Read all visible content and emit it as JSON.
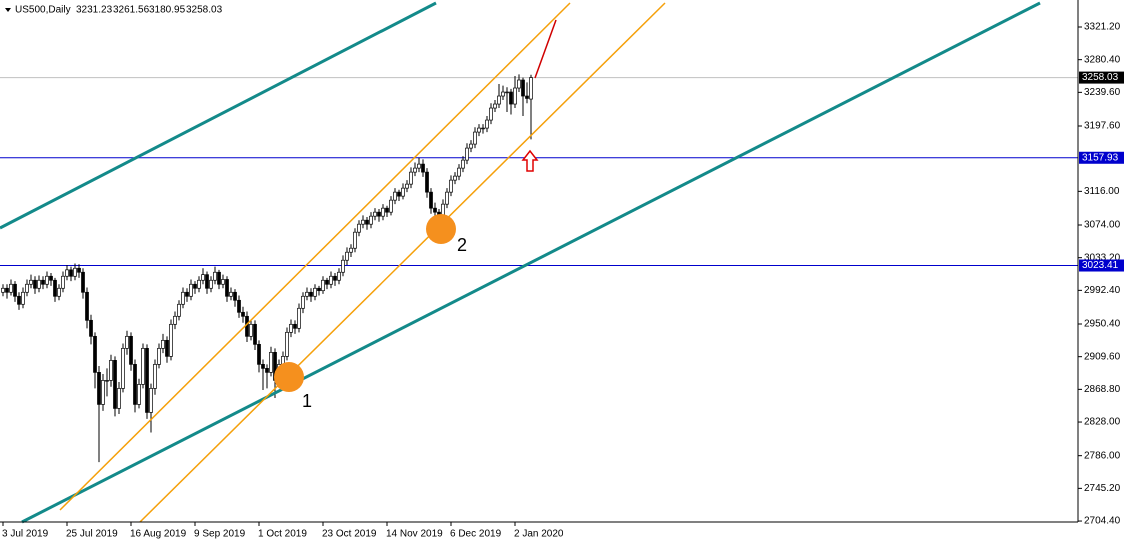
{
  "chart_data": {
    "type": "candlestick",
    "title": "US500,Daily",
    "categories": [
      "3 Jul 2019",
      null,
      null,
      null,
      null,
      null,
      null,
      null,
      null,
      null,
      null,
      null,
      null,
      null,
      null,
      null,
      "25 Jul 2019",
      null,
      null,
      null,
      null,
      null,
      null,
      null,
      null,
      null,
      null,
      null,
      null,
      null,
      null,
      null,
      "16 Aug 2019",
      null,
      null,
      null,
      null,
      null,
      null,
      null,
      null,
      null,
      null,
      null,
      null,
      null,
      null,
      null,
      "9 Sep 2019",
      null,
      null,
      null,
      null,
      null,
      null,
      null,
      null,
      null,
      null,
      null,
      null,
      null,
      null,
      null,
      "1 Oct 2019",
      null,
      null,
      null,
      null,
      null,
      null,
      null,
      null,
      null,
      null,
      null,
      null,
      null,
      null,
      null,
      "23 Oct 2019",
      null,
      null,
      null,
      null,
      null,
      null,
      null,
      null,
      null,
      null,
      null,
      null,
      null,
      null,
      null,
      "14 Nov 2019",
      null,
      null,
      null,
      null,
      null,
      null,
      null,
      null,
      null,
      null,
      null,
      null,
      null,
      null,
      null,
      "6 Dec 2019",
      null,
      null,
      null,
      null,
      null,
      null,
      null,
      null,
      null,
      null,
      null,
      null,
      null,
      null,
      null,
      "2 Jan 2020",
      null,
      null,
      null,
      null
    ],
    "ohlc": [
      [
        2990,
        3000,
        2985,
        2995
      ],
      [
        2995,
        3000,
        2982,
        2990
      ],
      [
        2990,
        3006,
        2986,
        3000
      ],
      [
        3000,
        3004,
        2978,
        2985
      ],
      [
        2985,
        2990,
        2968,
        2975
      ],
      [
        2975,
        2996,
        2970,
        2990
      ],
      [
        2990,
        3006,
        2985,
        3000
      ],
      [
        3000,
        3012,
        2995,
        3005
      ],
      [
        3005,
        3010,
        2988,
        2995
      ],
      [
        2995,
        3011,
        2990,
        3005
      ],
      [
        3005,
        3010,
        2994,
        3000
      ],
      [
        3000,
        3016,
        2995,
        3010
      ],
      [
        3010,
        3014,
        2998,
        3005
      ],
      [
        3005,
        3008,
        2978,
        2985
      ],
      [
        2985,
        3000,
        2980,
        2995
      ],
      [
        2995,
        3016,
        2990,
        3010
      ],
      [
        3010,
        3024,
        3005,
        3018
      ],
      [
        3018,
        3022,
        3004,
        3010
      ],
      [
        3010,
        3026,
        3005,
        3020
      ],
      [
        3020,
        3025,
        3008,
        3015
      ],
      [
        3015,
        3020,
        2982,
        2990
      ],
      [
        2990,
        2996,
        2945,
        2955
      ],
      [
        2955,
        2962,
        2925,
        2935
      ],
      [
        2935,
        2940,
        2870,
        2890
      ],
      [
        2890,
        2898,
        2778,
        2850
      ],
      [
        2850,
        2888,
        2842,
        2880
      ],
      [
        2880,
        2895,
        2860,
        2880
      ],
      [
        2880,
        2912,
        2872,
        2905
      ],
      [
        2905,
        2910,
        2835,
        2845
      ],
      [
        2845,
        2878,
        2838,
        2870
      ],
      [
        2870,
        2926,
        2865,
        2920
      ],
      [
        2920,
        2942,
        2912,
        2935
      ],
      [
        2935,
        2940,
        2892,
        2900
      ],
      [
        2900,
        2906,
        2840,
        2850
      ],
      [
        2850,
        2882,
        2845,
        2875
      ],
      [
        2875,
        2926,
        2870,
        2920
      ],
      [
        2920,
        2925,
        2832,
        2840
      ],
      [
        2840,
        2876,
        2815,
        2870
      ],
      [
        2870,
        2906,
        2862,
        2900
      ],
      [
        2900,
        2926,
        2895,
        2920
      ],
      [
        2920,
        2938,
        2914,
        2930
      ],
      [
        2930,
        2935,
        2902,
        2910
      ],
      [
        2910,
        2956,
        2905,
        2950
      ],
      [
        2950,
        2966,
        2944,
        2960
      ],
      [
        2960,
        2980,
        2955,
        2975
      ],
      [
        2975,
        2996,
        2970,
        2990
      ],
      [
        2990,
        2995,
        2978,
        2985
      ],
      [
        2985,
        3006,
        2980,
        3000
      ],
      [
        3000,
        3004,
        2988,
        2995
      ],
      [
        2995,
        3010,
        2990,
        3005
      ],
      [
        3005,
        3020,
        3000,
        3012
      ],
      [
        3012,
        3016,
        2988,
        2995
      ],
      [
        2995,
        3010,
        2990,
        3005
      ],
      [
        3005,
        3022,
        3000,
        3015
      ],
      [
        3015,
        3018,
        2994,
        3000
      ],
      [
        3000,
        3012,
        2995,
        3006
      ],
      [
        3006,
        3010,
        2978,
        2985
      ],
      [
        2985,
        2996,
        2980,
        2990
      ],
      [
        2990,
        2994,
        2972,
        2980
      ],
      [
        2980,
        2986,
        2958,
        2965
      ],
      [
        2965,
        2972,
        2952,
        2960
      ],
      [
        2960,
        2966,
        2928,
        2935
      ],
      [
        2935,
        2956,
        2930,
        2950
      ],
      [
        2950,
        2955,
        2918,
        2925
      ],
      [
        2925,
        2930,
        2890,
        2900
      ],
      [
        2900,
        2906,
        2868,
        2895
      ],
      [
        2895,
        2900,
        2870,
        2890
      ],
      [
        2890,
        2922,
        2885,
        2915
      ],
      [
        2915,
        2920,
        2858,
        2880
      ],
      [
        2880,
        2906,
        2874,
        2900
      ],
      [
        2900,
        2916,
        2894,
        2910
      ],
      [
        2910,
        2946,
        2905,
        2940
      ],
      [
        2940,
        2956,
        2934,
        2950
      ],
      [
        2950,
        2955,
        2938,
        2945
      ],
      [
        2945,
        2976,
        2940,
        2970
      ],
      [
        2970,
        2990,
        2964,
        2985
      ],
      [
        2985,
        2996,
        2980,
        2990
      ],
      [
        2990,
        2995,
        2978,
        2985
      ],
      [
        2985,
        3000,
        2980,
        2995
      ],
      [
        2995,
        2998,
        2986,
        2992
      ],
      [
        2992,
        3010,
        2988,
        3005
      ],
      [
        3005,
        3008,
        2994,
        3000
      ],
      [
        3000,
        3016,
        2995,
        3010
      ],
      [
        3010,
        3014,
        2998,
        3005
      ],
      [
        3005,
        3020,
        3000,
        3015
      ],
      [
        3015,
        3036,
        3010,
        3030
      ],
      [
        3030,
        3046,
        3024,
        3040
      ],
      [
        3040,
        3050,
        3034,
        3045
      ],
      [
        3045,
        3070,
        3040,
        3065
      ],
      [
        3065,
        3080,
        3060,
        3075
      ],
      [
        3075,
        3086,
        3070,
        3080
      ],
      [
        3080,
        3084,
        3068,
        3075
      ],
      [
        3075,
        3090,
        3070,
        3085
      ],
      [
        3085,
        3095,
        3080,
        3090
      ],
      [
        3090,
        3094,
        3078,
        3085
      ],
      [
        3085,
        3100,
        3080,
        3095
      ],
      [
        3095,
        3098,
        3084,
        3090
      ],
      [
        3090,
        3110,
        3086,
        3105
      ],
      [
        3105,
        3120,
        3100,
        3115
      ],
      [
        3115,
        3118,
        3104,
        3110
      ],
      [
        3110,
        3126,
        3106,
        3120
      ],
      [
        3120,
        3130,
        3115,
        3125
      ],
      [
        3125,
        3146,
        3120,
        3140
      ],
      [
        3140,
        3152,
        3135,
        3145
      ],
      [
        3145,
        3158,
        3140,
        3150
      ],
      [
        3150,
        3156,
        3134,
        3140
      ],
      [
        3140,
        3145,
        3108,
        3115
      ],
      [
        3115,
        3120,
        3088,
        3095
      ],
      [
        3095,
        3102,
        3080,
        3090
      ],
      [
        3090,
        3094,
        3070,
        3080
      ],
      [
        3080,
        3106,
        3076,
        3100
      ],
      [
        3100,
        3120,
        3095,
        3115
      ],
      [
        3115,
        3136,
        3110,
        3130
      ],
      [
        3130,
        3140,
        3125,
        3135
      ],
      [
        3135,
        3150,
        3130,
        3145
      ],
      [
        3145,
        3160,
        3140,
        3155
      ],
      [
        3155,
        3176,
        3150,
        3170
      ],
      [
        3170,
        3180,
        3165,
        3175
      ],
      [
        3175,
        3196,
        3170,
        3190
      ],
      [
        3190,
        3200,
        3185,
        3195
      ],
      [
        3195,
        3200,
        3188,
        3195
      ],
      [
        3195,
        3210,
        3190,
        3205
      ],
      [
        3205,
        3226,
        3200,
        3220
      ],
      [
        3220,
        3230,
        3215,
        3225
      ],
      [
        3225,
        3250,
        3220,
        3235
      ],
      [
        3235,
        3248,
        3230,
        3240
      ],
      [
        3240,
        3246,
        3215,
        3240
      ],
      [
        3240,
        3244,
        3212,
        3225
      ],
      [
        3225,
        3260,
        3220,
        3245
      ],
      [
        3245,
        3262,
        3240,
        3255
      ],
      [
        3255,
        3258,
        3210,
        3235
      ],
      [
        3235,
        3252,
        3226,
        3232
      ],
      [
        3231.23,
        3261.56,
        3180.95,
        3258.03
      ]
    ],
    "up_color": "#ffffff",
    "down_color": "#000000",
    "wick_color": "#000000",
    "ylim": [
      2703.2,
      3354.9
    ],
    "yticks": [
      {
        "value": 3321.2,
        "label": "3321.20"
      },
      {
        "value": 3280.4,
        "label": "3280.40"
      },
      {
        "value": 3239.6,
        "label": "3239.60"
      },
      {
        "value": 3197.6,
        "label": "3197.60"
      },
      {
        "value": 3116,
        "label": "3116.00"
      },
      {
        "value": 3074,
        "label": "3074.00"
      },
      {
        "value": 3033.2,
        "label": "3033.20"
      },
      {
        "value": 2992.4,
        "label": "2992.40"
      },
      {
        "value": 2950.4,
        "label": "2950.40"
      },
      {
        "value": 2909.6,
        "label": "2909.60"
      },
      {
        "value": 2868.8,
        "label": "2868.80"
      },
      {
        "value": 2828,
        "label": "2828.00"
      },
      {
        "value": 2786,
        "label": "2786.00"
      },
      {
        "value": 2745.2,
        "label": "2745.20"
      },
      {
        "value": 2704.4,
        "label": "2704.40"
      }
    ],
    "levels": [
      {
        "value": 3157.93,
        "color": "#0000cd"
      },
      {
        "value": 3023.41,
        "color": "#0000cd"
      }
    ],
    "price_line_color": "#c0c0c0",
    "annotations": [
      "1",
      "2"
    ]
  }
}
